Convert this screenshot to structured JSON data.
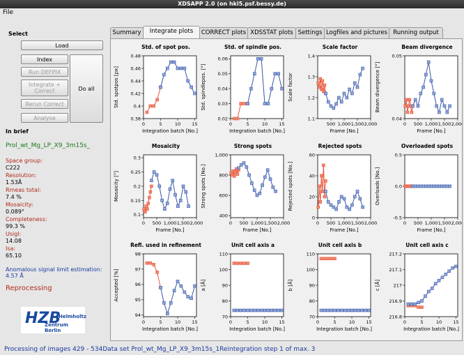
{
  "window": {
    "title": "XDSAPP 2.0 (on hkl5.psf.bessy.de)",
    "menu": [
      "File"
    ]
  },
  "sidebar": {
    "select": "Select",
    "buttons": [
      "Load",
      "Index",
      "Run DEFPIX",
      "Integrate + Correct",
      "Do all",
      "Rerun Correct",
      "Analyse"
    ],
    "in_brief": "In brief",
    "dataset": "Prol_wt_Mg_LP_X9_3m15s_",
    "fields": [
      {
        "label": "Space group:",
        "value": "C222"
      },
      {
        "label": "Resolution:",
        "value": "1.53Å"
      },
      {
        "label": "Rmeas total:",
        "value": "7.4 %"
      },
      {
        "label": "Mosaicity:",
        "value": "0.089°"
      },
      {
        "label": "Completeness:",
        "value": "99.3 %"
      },
      {
        "label": "Usigl:",
        "value": "14.08"
      },
      {
        "label": "Isa:",
        "value": "65.10"
      }
    ],
    "anomalous": "Anomalous signal limit estimation: 4.57 Å",
    "status": "Reprocessing",
    "logo": {
      "text": "HZB",
      "line1": "Helmholtz",
      "line2": "Zentrum Berlin"
    }
  },
  "tabs": [
    "Summary",
    "Integrate plots",
    "CORRECT plots",
    "XDSSTAT plots",
    "Settings",
    "Logfiles and pictures",
    "Running output"
  ],
  "status_bar": "Processing of images 429 - 534Data set Prol_wt_Mg_LP_X9_3m15s_1Reintegration step 1 of max. 3",
  "chart_data": [
    {
      "type": "line",
      "title": "Std. of spot pos.",
      "x_label": "Integration batch [No.]",
      "y_label": "Std. spotpos [px]",
      "xlim": [
        0,
        15.5
      ],
      "xticks": [
        0,
        5,
        10,
        15
      ],
      "ylim": [
        0.38,
        0.48
      ],
      "yticks": [
        0.38,
        0.4,
        0.42,
        0.44,
        0.46,
        0.48
      ],
      "series": [
        {
          "color": "#e8553a",
          "x": [
            1,
            2,
            3,
            4,
            5
          ],
          "values": [
            0.39,
            0.4,
            0.4,
            0.41,
            0.43
          ]
        },
        {
          "color": "#3a55a6",
          "x": [
            5,
            6,
            7,
            8,
            9,
            10,
            11,
            12,
            13,
            14,
            15
          ],
          "values": [
            0.43,
            0.45,
            0.46,
            0.47,
            0.47,
            0.46,
            0.46,
            0.46,
            0.44,
            0.43,
            0.42
          ]
        }
      ]
    },
    {
      "type": "line",
      "title": "Std. of spindle pos.",
      "x_label": "Integration batch [No.]",
      "y_label": "Std. spindlepos. [°]",
      "xlim": [
        0,
        15.5
      ],
      "xticks": [
        0,
        5,
        10,
        15
      ],
      "ylim": [
        0.02,
        0.062
      ],
      "yticks": [
        0.02,
        0.03,
        0.04,
        0.05,
        0.06
      ],
      "series": [
        {
          "color": "#e8553a",
          "x": [
            1,
            2,
            3,
            4,
            5
          ],
          "values": [
            0.02,
            0.02,
            0.03,
            0.03,
            0.03
          ]
        },
        {
          "color": "#3a55a6",
          "x": [
            5,
            6,
            7,
            8,
            9,
            10,
            11,
            12,
            13,
            14,
            15
          ],
          "values": [
            0.03,
            0.04,
            0.05,
            0.06,
            0.06,
            0.03,
            0.03,
            0.04,
            0.05,
            0.05,
            0.04
          ]
        }
      ]
    },
    {
      "type": "line",
      "title": "Scale factor",
      "x_label": "Frame [No.]",
      "y_label": "Scale factor",
      "xlim": [
        0,
        2000
      ],
      "xticks": [
        500,
        {
          "value": 1000,
          "label": "1,000"
        },
        {
          "value": 1500,
          "label": "1,500"
        },
        {
          "value": 2000,
          "label": "2,000"
        }
      ],
      "ylim": [
        1.1,
        1.4
      ],
      "yticks": [
        1.1,
        1.2,
        1.3,
        1.4
      ],
      "series": [
        {
          "color": "#e8553a",
          "x": [
            20,
            60,
            100,
            140,
            180,
            220,
            260,
            300
          ],
          "values": [
            1.27,
            1.25,
            1.29,
            1.24,
            1.28,
            1.23,
            1.26,
            1.22
          ]
        },
        {
          "color": "#3a55a6",
          "x": [
            300,
            400,
            500,
            600,
            700,
            800,
            900,
            1000,
            1100,
            1200,
            1300,
            1400,
            1500,
            1600,
            1700
          ],
          "values": [
            1.22,
            1.18,
            1.16,
            1.15,
            1.17,
            1.2,
            1.18,
            1.22,
            1.2,
            1.24,
            1.22,
            1.27,
            1.25,
            1.31,
            1.34
          ]
        }
      ]
    },
    {
      "type": "line",
      "title": "Beam divergence",
      "x_label": "Frame [No.]",
      "y_label": "Beam divergence [°]",
      "xlim": [
        0,
        2000
      ],
      "xticks": [
        0,
        500,
        {
          "value": 1000,
          "label": "1,000"
        },
        {
          "value": 1500,
          "label": "1,500"
        },
        {
          "value": 2000,
          "label": "2,000"
        }
      ],
      "ylim": [
        0.04,
        0.05
      ],
      "yticks": [
        0.04,
        0.05
      ],
      "series": [
        {
          "color": "#e8553a",
          "x": [
            20,
            60,
            100,
            140,
            180,
            220,
            260,
            300
          ],
          "values": [
            0.042,
            0.043,
            0.041,
            0.042,
            0.043,
            0.042,
            0.041,
            0.042
          ]
        },
        {
          "color": "#3a55a6",
          "x": [
            300,
            400,
            500,
            600,
            700,
            800,
            900,
            1000,
            1100,
            1200,
            1300,
            1400,
            1500,
            1600,
            1700
          ],
          "values": [
            0.042,
            0.043,
            0.042,
            0.044,
            0.045,
            0.047,
            0.049,
            0.046,
            0.044,
            0.042,
            0.041,
            0.043,
            0.042,
            0.041,
            0.042
          ]
        }
      ]
    },
    {
      "type": "line",
      "title": "Mosaicity",
      "x_label": "Frame [No.]",
      "y_label": "Mosaicity [°]",
      "xlim": [
        0,
        2000
      ],
      "xticks": [
        0,
        500,
        {
          "value": 1000,
          "label": "1,000"
        },
        {
          "value": 1500,
          "label": "1,500"
        },
        {
          "value": 2000,
          "label": "2,000"
        }
      ],
      "ylim": [
        0.09,
        0.31
      ],
      "yticks": [
        0.1,
        0.15,
        0.2,
        0.25,
        0.3
      ],
      "series": [
        {
          "color": "#e8553a",
          "x": [
            20,
            60,
            100,
            140,
            180,
            220,
            260,
            300
          ],
          "values": [
            0.12,
            0.11,
            0.13,
            0.12,
            0.14,
            0.16,
            0.18,
            0.2
          ]
        },
        {
          "color": "#3a55a6",
          "x": [
            300,
            400,
            500,
            600,
            700,
            800,
            900,
            1000,
            1100,
            1200,
            1300,
            1400,
            1500,
            1600,
            1700
          ],
          "values": [
            0.22,
            0.25,
            0.24,
            0.2,
            0.15,
            0.12,
            0.14,
            0.19,
            0.22,
            0.17,
            0.13,
            0.15,
            0.2,
            0.18,
            0.13
          ]
        }
      ]
    },
    {
      "type": "line",
      "title": "Strong spots",
      "x_label": "Frame [No.]",
      "y_label": "Strong spots [No.]",
      "xlim": [
        0,
        2000
      ],
      "xticks": [
        0,
        500,
        {
          "value": 1000,
          "label": "1,000"
        },
        {
          "value": 1500,
          "label": "1,500"
        },
        {
          "value": 2000,
          "label": "2,000"
        }
      ],
      "ylim": [
        380,
        1000
      ],
      "yticks": [
        400,
        600,
        800,
        {
          "value": 1000,
          "label": "1,000"
        }
      ],
      "series": [
        {
          "color": "#e8553a",
          "x": [
            20,
            60,
            100,
            140,
            180,
            220,
            260,
            300
          ],
          "values": [
            820,
            800,
            840,
            790,
            830,
            860,
            810,
            850
          ]
        },
        {
          "color": "#3a55a6",
          "x": [
            300,
            400,
            500,
            600,
            700,
            800,
            900,
            1000,
            1100,
            1200,
            1300,
            1400,
            1500,
            1600,
            1700
          ],
          "values": [
            870,
            900,
            920,
            880,
            800,
            720,
            650,
            600,
            620,
            700,
            780,
            850,
            760,
            680,
            640
          ]
        }
      ]
    },
    {
      "type": "line",
      "title": "Rejected spots",
      "x_label": "Frame [No.]",
      "y_label": "Rejected spots [No.]",
      "xlim": [
        0,
        2000
      ],
      "xticks": [
        0,
        500,
        {
          "value": 1000,
          "label": "1,000"
        },
        {
          "value": 1500,
          "label": "1,500"
        },
        {
          "value": 2000,
          "label": "2,000"
        }
      ],
      "ylim": [
        0,
        60
      ],
      "yticks": [
        0,
        20,
        40,
        60
      ],
      "series": [
        {
          "color": "#e8553a",
          "x": [
            20,
            60,
            100,
            140,
            180,
            220,
            260,
            300
          ],
          "values": [
            10,
            30,
            15,
            40,
            25,
            50,
            20,
            35
          ]
        },
        {
          "color": "#3a55a6",
          "x": [
            300,
            400,
            500,
            600,
            700,
            800,
            900,
            1000,
            1100,
            1200,
            1300,
            1400,
            1500,
            1600,
            1700
          ],
          "values": [
            25,
            15,
            12,
            10,
            8,
            15,
            20,
            18,
            10,
            8,
            12,
            20,
            25,
            18,
            10
          ]
        }
      ]
    },
    {
      "type": "line",
      "title": "Overloaded spots",
      "x_label": "Frame [No.]",
      "y_label": "Overloads [No.]",
      "xlim": [
        0,
        2000
      ],
      "xticks": [
        0,
        500,
        {
          "value": 1000,
          "label": "1,000"
        },
        {
          "value": 1500,
          "label": "1,500"
        },
        {
          "value": 2000,
          "label": "2,000"
        }
      ],
      "ylim": [
        -0.5,
        0.5
      ],
      "yticks": [
        -0.5,
        {
          "value": 0,
          "label": "0.0"
        },
        0.5
      ],
      "series": [
        {
          "color": "#e8553a",
          "x": [
            20,
            60,
            100,
            140,
            180,
            220,
            260,
            300
          ],
          "values": [
            0,
            0,
            0,
            0,
            0,
            0,
            0,
            0
          ]
        },
        {
          "color": "#3a55a6",
          "x": [
            300,
            400,
            500,
            600,
            700,
            800,
            900,
            1000,
            1100,
            1200,
            1300,
            1400,
            1500,
            1600,
            1700
          ],
          "values": [
            0,
            0,
            0,
            0,
            0,
            0,
            0,
            0,
            0,
            0,
            0,
            0,
            0,
            0,
            0
          ]
        }
      ]
    },
    {
      "type": "line",
      "title": "Refl. used in refinement",
      "x_label": "Integration batch [No.]",
      "y_label": "Accepted [%]",
      "xlim": [
        0,
        15.5
      ],
      "xticks": [
        0,
        5,
        10,
        15
      ],
      "ylim": [
        93.9,
        98
      ],
      "yticks": [
        94,
        95,
        96,
        97,
        98
      ],
      "series": [
        {
          "color": "#e8553a",
          "x": [
            1,
            2,
            3,
            4,
            5
          ],
          "values": [
            97.4,
            97.4,
            97.3,
            96.8,
            95.8
          ]
        },
        {
          "color": "#3a55a6",
          "x": [
            5,
            6,
            7,
            8,
            9,
            10,
            11,
            12,
            13,
            14,
            15
          ],
          "values": [
            95.8,
            94.8,
            94.1,
            94.8,
            95.6,
            96.2,
            95.9,
            95.5,
            95.2,
            95.1,
            95.9
          ]
        }
      ]
    },
    {
      "type": "line",
      "title": "Unit cell axis a",
      "x_label": "Integration batch [No.]",
      "y_label": "a [Å]",
      "xlim": [
        0,
        15.5
      ],
      "xticks": [
        0,
        5,
        10,
        15
      ],
      "ylim": [
        70,
        110
      ],
      "yticks": [
        70,
        80,
        90,
        100,
        110
      ],
      "series": [
        {
          "color": "#e8553a",
          "x": [
            1,
            2,
            3,
            4,
            5
          ],
          "values": [
            104,
            104,
            104,
            104,
            104
          ]
        },
        {
          "color": "#3a55a6",
          "x": [
            1,
            2,
            3,
            4,
            5,
            6,
            7,
            8,
            9,
            10,
            11,
            12,
            13,
            14,
            15
          ],
          "values": [
            74,
            74,
            74,
            74,
            74,
            74,
            74,
            74,
            74,
            74,
            74,
            74,
            74,
            74,
            74
          ]
        }
      ]
    },
    {
      "type": "line",
      "title": "Unit cell axis b",
      "x_label": "Integration batch [No.]",
      "y_label": "b [Å]",
      "xlim": [
        0,
        15.5
      ],
      "xticks": [
        0,
        5,
        10,
        15
      ],
      "ylim": [
        70,
        110
      ],
      "yticks": [
        70,
        80,
        90,
        100,
        110
      ],
      "series": [
        {
          "color": "#e8553a",
          "x": [
            1,
            2,
            3,
            4,
            5
          ],
          "values": [
            107,
            107,
            107,
            107,
            107
          ]
        },
        {
          "color": "#3a55a6",
          "x": [
            1,
            2,
            3,
            4,
            5,
            6,
            7,
            8,
            9,
            10,
            11,
            12,
            13,
            14,
            15
          ],
          "values": [
            74,
            74,
            74,
            74,
            74,
            74,
            74,
            74,
            74,
            74,
            74,
            74,
            74,
            74,
            74
          ]
        }
      ]
    },
    {
      "type": "line",
      "title": "Unit cell axis c",
      "x_label": "Integration batch [No.]",
      "y_label": "c [Å]",
      "xlim": [
        0,
        15.5
      ],
      "xticks": [
        0,
        5,
        10,
        15
      ],
      "ylim": [
        216.8,
        217.2
      ],
      "yticks": [
        216.8,
        216.9,
        217,
        217.1,
        217.2
      ],
      "series": [
        {
          "color": "#e8553a",
          "x": [
            1,
            2,
            3,
            4,
            5
          ],
          "values": [
            216.87,
            216.87,
            216.87,
            216.86,
            216.86
          ]
        },
        {
          "color": "#3a55a6",
          "x": [
            1,
            2,
            3,
            4,
            5,
            6,
            7,
            8,
            9,
            10,
            11,
            12,
            13,
            14,
            15
          ],
          "values": [
            216.88,
            216.88,
            216.88,
            216.89,
            216.9,
            216.93,
            216.96,
            216.98,
            217.01,
            217.03,
            217.05,
            217.07,
            217.09,
            217.11,
            217.12
          ]
        }
      ]
    }
  ]
}
